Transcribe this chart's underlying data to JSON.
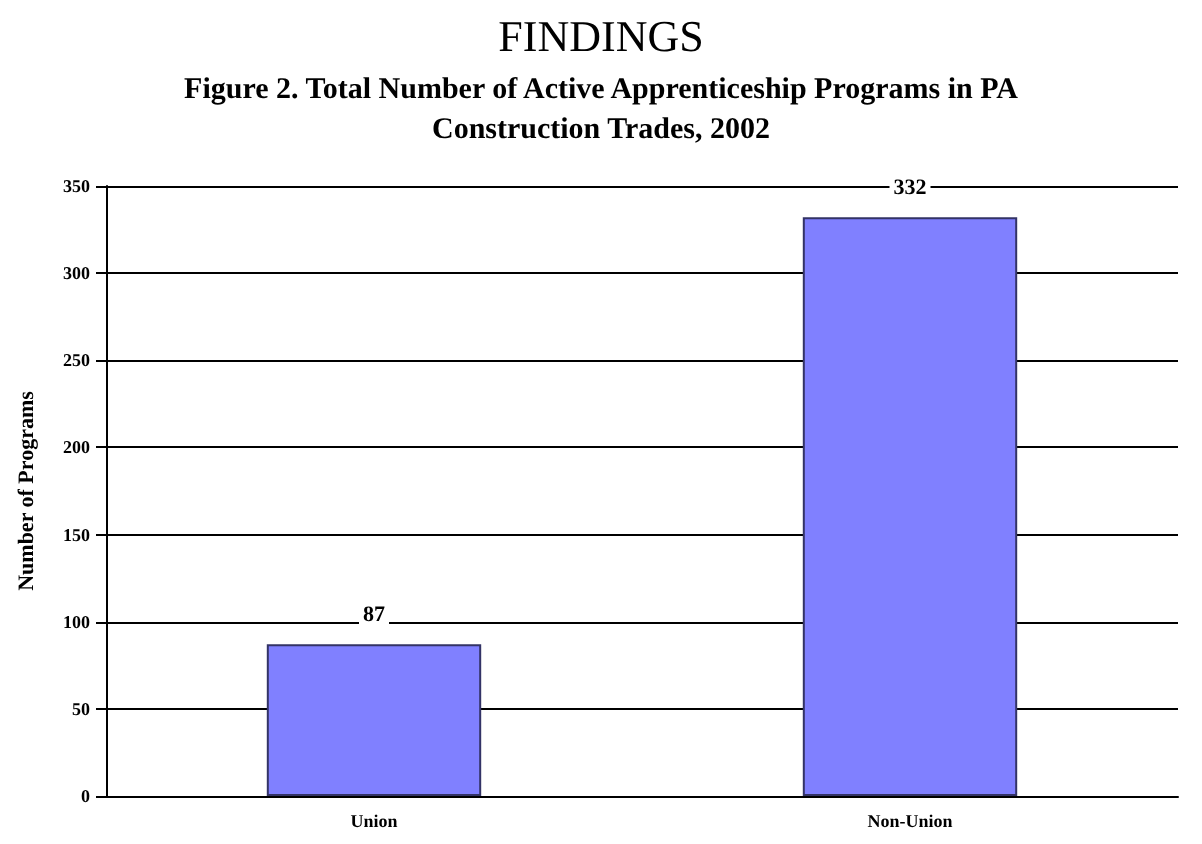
{
  "chart_data": {
    "type": "bar",
    "title": "Figure 2. Total Number of Active Apprenticeship Programs in PA\nConstruction Trades, 2002",
    "annotations": [
      "FINDINGS"
    ],
    "ylabel": "Number of Programs",
    "categories": [
      "Union",
      "Non-Union"
    ],
    "values": [
      87,
      332
    ],
    "color": "#8080ff",
    "ylim": [
      0,
      350
    ],
    "yticks": [
      0,
      50,
      100,
      150,
      200,
      250,
      300,
      350
    ],
    "grid": "y",
    "data_labels": true
  }
}
